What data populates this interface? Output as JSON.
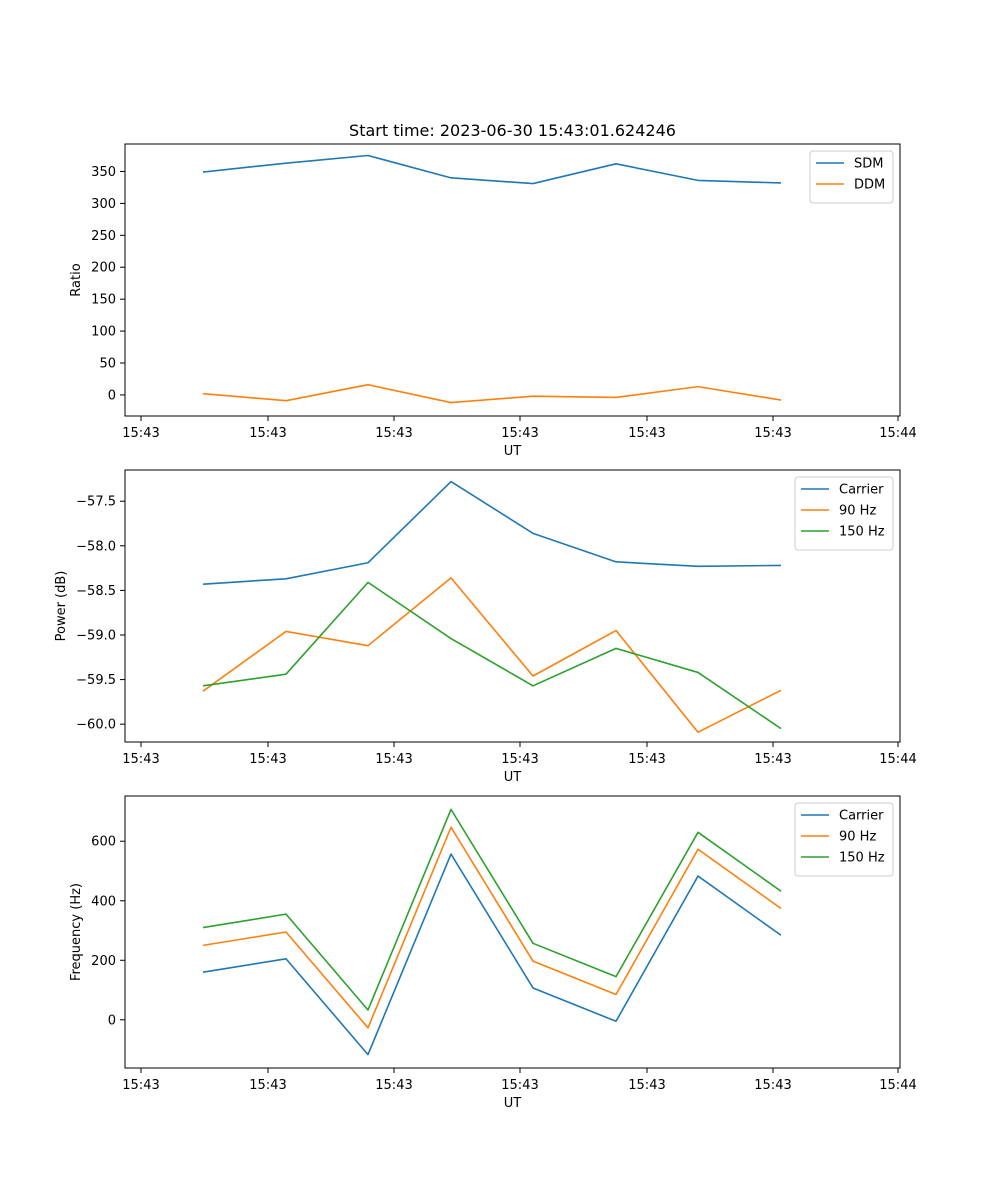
{
  "chart_data": [
    {
      "type": "line",
      "title": "Start time: 2023-06-30 15:43:01.624246",
      "xlabel": "UT",
      "ylabel": "Ratio",
      "x_tick_labels": [
        "15:43",
        "15:43",
        "15:43",
        "15:43",
        "15:43",
        "15:43",
        "15:44"
      ],
      "yticks": [
        0,
        50,
        100,
        150,
        200,
        250,
        300,
        350
      ],
      "ylim": [
        -33,
        393
      ],
      "legend_position": "top-right",
      "grid": false,
      "series": [
        {
          "name": "SDM",
          "color": "#1f77b4",
          "values": [
            349,
            363,
            375,
            340,
            331,
            362,
            336,
            332
          ]
        },
        {
          "name": "DDM",
          "color": "#ff7f0e",
          "values": [
            2,
            -9,
            16,
            -12,
            -2,
            -4,
            13,
            -8
          ]
        }
      ]
    },
    {
      "type": "line",
      "title": "",
      "xlabel": "UT",
      "ylabel": "Power (dB)",
      "x_tick_labels": [
        "15:43",
        "15:43",
        "15:43",
        "15:43",
        "15:43",
        "15:43",
        "15:44"
      ],
      "yticks": [
        -60.0,
        -59.5,
        -59.0,
        -58.5,
        -58.0,
        -57.5
      ],
      "ytick_labels": [
        "−60.0",
        "−59.5",
        "−59.0",
        "−58.5",
        "−58.0",
        "−57.5"
      ],
      "ylim": [
        -60.2,
        -57.15
      ],
      "legend_position": "top-right",
      "grid": false,
      "series": [
        {
          "name": "Carrier",
          "color": "#1f77b4",
          "values": [
            -58.43,
            -58.37,
            -58.19,
            -57.28,
            -57.86,
            -58.18,
            -58.23,
            -58.22
          ]
        },
        {
          "name": "90 Hz",
          "color": "#ff7f0e",
          "values": [
            -59.63,
            -58.96,
            -59.12,
            -58.36,
            -59.46,
            -58.95,
            -60.09,
            -59.62
          ]
        },
        {
          "name": "150 Hz",
          "color": "#2ca02c",
          "values": [
            -59.57,
            -59.44,
            -58.41,
            -59.04,
            -59.57,
            -59.15,
            -59.42,
            -60.05
          ]
        }
      ]
    },
    {
      "type": "line",
      "title": "",
      "xlabel": "UT",
      "ylabel": "Frequency (Hz)",
      "x_tick_labels": [
        "15:43",
        "15:43",
        "15:43",
        "15:43",
        "15:43",
        "15:43",
        "15:44"
      ],
      "yticks": [
        0,
        200,
        400,
        600
      ],
      "ylim": [
        -162,
        752
      ],
      "legend_position": "top-right",
      "grid": false,
      "series": [
        {
          "name": "Carrier",
          "color": "#1f77b4",
          "values": [
            160,
            205,
            -117,
            557,
            107,
            -5,
            483,
            284
          ]
        },
        {
          "name": "90 Hz",
          "color": "#ff7f0e",
          "values": [
            250,
            295,
            -27,
            647,
            197,
            85,
            573,
            374
          ]
        },
        {
          "name": "150 Hz",
          "color": "#2ca02c",
          "values": [
            310,
            355,
            33,
            707,
            257,
            145,
            630,
            432
          ]
        }
      ]
    }
  ]
}
